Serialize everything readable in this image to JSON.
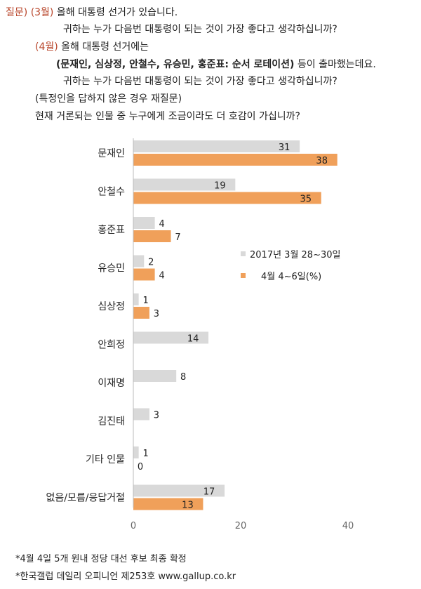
{
  "question": {
    "label": "질문)",
    "march_tag": "(3월)",
    "march_line1": "올해 대통령 선거가 있습니다.",
    "march_line2": "귀하는 누가 다음번 대통령이 되는 것이 가장 좋다고 생각하십니까?",
    "april_tag": "(4월)",
    "april_line1": "올해 대통령 선거에는",
    "april_candidates": "(문재인, 심상정, 안철수, 유승민, 홍준표: 순서 로테이션)",
    "april_line1_end": "등이 출마했는데요.",
    "april_line2": "귀하는 누가 다음번 대통령이 되는 것이 가장 좋다고 생각하십니까?",
    "followup_line1": "(특정인을 답하지 않은 경우 재질문)",
    "followup_line2": "현재 거론되는 인물 중 누구에게 조금이라도 더 호감이 가십니까?"
  },
  "chart_data": {
    "type": "bar",
    "orientation": "horizontal",
    "categories": [
      "문재인",
      "안철수",
      "홍준표",
      "유승민",
      "심상정",
      "안희정",
      "이재명",
      "김진태",
      "기타 인물",
      "없음/모름/응답거절"
    ],
    "series": [
      {
        "name": "2017년 3월 28~30일",
        "color": "#d9d9d9",
        "values": [
          31,
          19,
          4,
          2,
          1,
          14,
          8,
          3,
          1,
          17
        ]
      },
      {
        "name": "4월 4~6일(%)",
        "color": "#f0a05a",
        "values": [
          38,
          35,
          7,
          4,
          3,
          null,
          null,
          null,
          0,
          13
        ]
      }
    ],
    "value_labels": [
      [
        "31",
        "19",
        "4",
        "2",
        "1",
        "14",
        "8",
        "3",
        "1",
        "17"
      ],
      [
        "38",
        "35",
        "7",
        "4",
        "3",
        "",
        "",
        "",
        "0",
        "13"
      ]
    ],
    "xlim": [
      0,
      40
    ],
    "xticks": [
      "0",
      "20",
      "40"
    ],
    "grid": false,
    "legend_position": "right-middle"
  },
  "footnotes": [
    "*4월 4일 5개 원내 정당 대선 후보 최종 확정",
    "*한국갤럽 데일리 오피니언 제253호 www.gallup.co.kr"
  ]
}
